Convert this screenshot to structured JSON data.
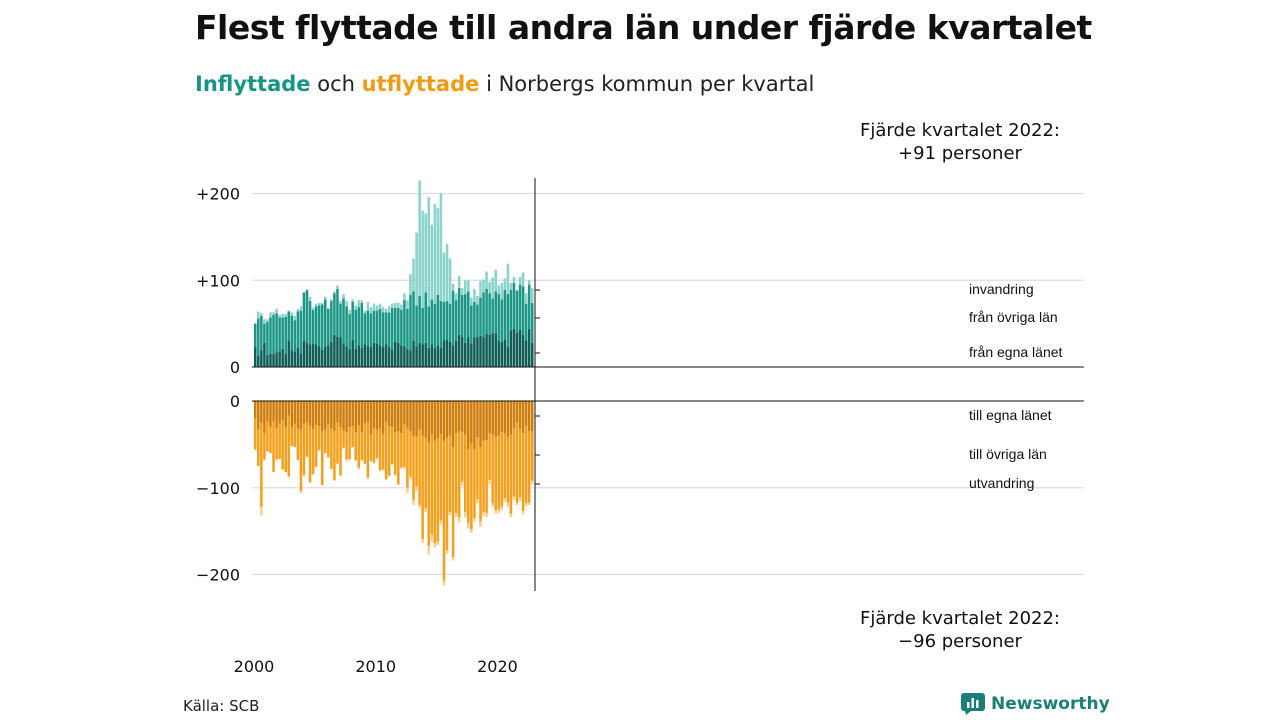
{
  "title": "Flest flyttade till andra län under fjärde kvartalet",
  "subtitle": {
    "inflow_word": "Inflyttade",
    "middle": " och ",
    "outflow_word": "utflyttade",
    "rest": " i Norbergs kommun per kvartal"
  },
  "source": "Källa: SCB",
  "brand": {
    "name": "Newsworthy",
    "icon": "newsworthy-logo-icon"
  },
  "colors": {
    "in_egna": "#0f5d56",
    "in_ovriga": "#1b9687",
    "in_invandring": "#8bd4cb",
    "out_egna": "#cf7c08",
    "out_ovriga": "#f5a01c",
    "out_utvandring": "#f7cf8e",
    "grid": "#dddddd",
    "axis": "#111111"
  },
  "annotations": {
    "top_line1": "Fjärde kvartalet 2022:",
    "top_line2": "+91 personer",
    "bottom_line1": "Fjärde kvartalet 2022:",
    "bottom_line2": "−96 personer"
  },
  "chart_data": {
    "type": "bar",
    "stacked": true,
    "title": "Flest flyttade till andra län under fjärde kvartalet",
    "x_start": {
      "year": 2000,
      "quarter": 1
    },
    "quarters": 92,
    "x_ticks": [
      "2000",
      "2010",
      "2020"
    ],
    "panels": [
      {
        "name": "Inflyttade",
        "y_ticks": [
          "+200",
          "+100",
          "0"
        ],
        "y_tick_values": [
          200,
          100,
          0
        ],
        "ylim": [
          0,
          220
        ],
        "series": [
          {
            "name": "från egna länet",
            "values": [
              23,
              13,
              19,
              28,
              14,
              15,
              15,
              17,
              18,
              21,
              15,
              30,
              19,
              18,
              22,
              16,
              30,
              28,
              26,
              27,
              26,
              24,
              20,
              23,
              25,
              29,
              37,
              35,
              34,
              27,
              24,
              21,
              31,
              21,
              25,
              22,
              26,
              24,
              23,
              28,
              27,
              25,
              23,
              26,
              23,
              20,
              29,
              28,
              25,
              24,
              21,
              19,
              30,
              24,
              28,
              26,
              28,
              22,
              26,
              22,
              25,
              22,
              31,
              31,
              29,
              25,
              30,
              37,
              35,
              28,
              34,
              27,
              34,
              35,
              36,
              34,
              38,
              37,
              39,
              39,
              30,
              29,
              32,
              23,
              42,
              44,
              40,
              43,
              37,
              30,
              44,
              28
            ]
          },
          {
            "name": "från övriga län",
            "values": [
              27,
              43,
              40,
              22,
              38,
              42,
              45,
              45,
              39,
              36,
              43,
              34,
              40,
              36,
              42,
              49,
              56,
              61,
              50,
              39,
              44,
              47,
              52,
              55,
              42,
              47,
              48,
              55,
              39,
              52,
              46,
              40,
              44,
              45,
              44,
              52,
              36,
              41,
              39,
              37,
              38,
              42,
              40,
              37,
              40,
              48,
              39,
              40,
              41,
              53,
              46,
              64,
              57,
              47,
              54,
              42,
              58,
              48,
              52,
              51,
              58,
              54,
              44,
              45,
              44,
              63,
              47,
              54,
              48,
              56,
              53,
              44,
              41,
              37,
              44,
              52,
              52,
              48,
              40,
              48,
              54,
              49,
              57,
              61,
              47,
              53,
              48,
              52,
              56,
              43,
              51,
              46
            ]
          },
          {
            "name": "invandring",
            "values": [
              0,
              8,
              3,
              5,
              3,
              6,
              3,
              5,
              3,
              4,
              3,
              1,
              4,
              5,
              3,
              5,
              0,
              0,
              5,
              2,
              3,
              3,
              2,
              3,
              1,
              2,
              2,
              4,
              3,
              5,
              6,
              5,
              3,
              5,
              8,
              3,
              3,
              10,
              7,
              8,
              6,
              6,
              6,
              4,
              7,
              5,
              6,
              6,
              6,
              8,
              10,
              24,
              38,
              84,
              133,
              112,
              91,
              126,
              86,
              115,
              100,
              124,
              57,
              66,
              52,
              8,
              8,
              14,
              8,
              16,
              13,
              9,
              15,
              10,
              19,
              15,
              20,
              13,
              24,
              25,
              10,
              19,
              13,
              35,
              8,
              7,
              1,
              9,
              16,
              12,
              5,
              17
            ]
          }
        ]
      },
      {
        "name": "Utflyttade",
        "y_ticks": [
          "0",
          "−100",
          "−200"
        ],
        "y_tick_values": [
          0,
          -100,
          -200
        ],
        "ylim": [
          -220,
          0
        ],
        "series": [
          {
            "name": "till egna länet",
            "values": [
              -20,
              -33,
              -25,
              -37,
              -24,
              -30,
              -24,
              -31,
              -26,
              -22,
              -30,
              -17,
              -30,
              -26,
              -32,
              -33,
              -26,
              -25,
              -29,
              -32,
              -28,
              -29,
              -35,
              -33,
              -26,
              -32,
              -35,
              -25,
              -30,
              -34,
              -36,
              -30,
              -29,
              -36,
              -28,
              -36,
              -26,
              -25,
              -39,
              -32,
              -33,
              -31,
              -38,
              -24,
              -29,
              -30,
              -36,
              -35,
              -37,
              -27,
              -31,
              -35,
              -40,
              -41,
              -33,
              -40,
              -42,
              -48,
              -39,
              -46,
              -43,
              -38,
              -46,
              -42,
              -40,
              -53,
              -37,
              -35,
              -36,
              -39,
              -56,
              -49,
              -56,
              -42,
              -53,
              -46,
              -45,
              -37,
              -39,
              -41,
              -40,
              -36,
              -37,
              -41,
              -39,
              -31,
              -25,
              -32,
              -37,
              -29,
              -35,
              -35
            ]
          },
          {
            "name": "till övriga län",
            "values": [
              -36,
              -42,
              -97,
              -30,
              -34,
              -30,
              -58,
              -36,
              -41,
              -57,
              -52,
              -70,
              -22,
              -27,
              -36,
              -71,
              -59,
              -39,
              -65,
              -52,
              -48,
              -27,
              -62,
              -27,
              -39,
              -46,
              -56,
              -47,
              -56,
              -20,
              -31,
              -37,
              -24,
              -32,
              -49,
              -32,
              -46,
              -63,
              -30,
              -39,
              -33,
              -49,
              -41,
              -66,
              -57,
              -43,
              -49,
              -61,
              -40,
              -49,
              -69,
              -52,
              -74,
              -58,
              -87,
              -119,
              -82,
              -119,
              -115,
              -118,
              -119,
              -100,
              -161,
              -130,
              -88,
              -127,
              -92,
              -99,
              -57,
              -89,
              -85,
              -99,
              -79,
              -71,
              -86,
              -82,
              -84,
              -54,
              -79,
              -85,
              -85,
              -86,
              -75,
              -76,
              -91,
              -79,
              -92,
              -79,
              -90,
              -89,
              -82,
              -57
            ]
          },
          {
            "name": "utvandring",
            "values": [
              0,
              0,
              -10,
              -2,
              0,
              0,
              0,
              -2,
              0,
              0,
              0,
              -1,
              0,
              0,
              0,
              -2,
              -2,
              -1,
              0,
              -1,
              0,
              -2,
              0,
              0,
              0,
              -1,
              -1,
              -1,
              0,
              -1,
              -2,
              -1,
              0,
              -1,
              -2,
              -1,
              -1,
              -2,
              -1,
              -1,
              -1,
              -1,
              -1,
              -1,
              -1,
              -1,
              -1,
              -1,
              -1,
              -2,
              -6,
              -3,
              -6,
              -5,
              -3,
              -4,
              -4,
              -10,
              -8,
              -5,
              -4,
              -4,
              -6,
              -4,
              -4,
              -4,
              -5,
              -6,
              -5,
              -6,
              -6,
              -4,
              -4,
              -5,
              -6,
              -5,
              -5,
              -5,
              -4,
              -4,
              -4,
              -4,
              -4,
              -5,
              -4,
              -4,
              -3,
              -4,
              -4,
              -3,
              -3,
              -4
            ]
          }
        ]
      }
    ],
    "legend": "right-end labels",
    "grid": true
  }
}
